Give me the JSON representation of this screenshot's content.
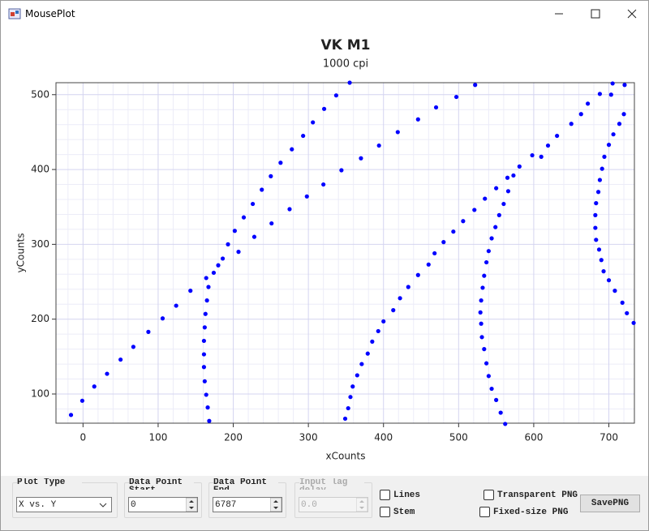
{
  "window": {
    "title": "MousePlot"
  },
  "chart_data": {
    "type": "scatter",
    "title": "VK M1",
    "subtitle": "1000 cpi",
    "x_label": "xCounts",
    "y_label": "yCounts",
    "color": "#0000ff",
    "x": [
      -16,
      -1,
      15,
      32,
      50,
      67,
      87,
      106,
      124,
      143,
      164,
      168,
      166,
      164,
      162,
      161,
      161,
      161,
      162,
      163,
      165,
      167,
      174,
      180,
      186,
      193,
      202,
      214,
      226,
      238,
      250,
      263,
      278,
      293,
      306,
      321,
      337,
      355,
      207,
      228,
      251,
      275,
      298,
      320,
      344,
      370,
      394,
      419,
      446,
      470,
      497,
      522,
      349,
      353,
      356,
      359,
      365,
      371,
      379,
      385,
      393,
      400,
      413,
      422,
      433,
      446,
      460,
      468,
      480,
      493,
      506,
      521,
      535,
      550,
      565,
      581,
      598,
      610,
      619,
      631,
      650,
      663,
      672,
      688,
      705,
      562,
      556,
      550,
      544,
      540,
      537,
      534,
      531,
      530,
      529,
      530,
      532,
      534,
      537,
      540,
      544,
      549,
      554,
      560,
      566,
      573,
      733,
      724,
      718,
      708,
      700,
      693,
      690,
      687,
      683,
      682,
      682,
      683,
      686,
      688,
      691,
      694,
      700,
      706,
      714,
      720,
      703,
      721
    ],
    "y": [
      72,
      91,
      110,
      127,
      146,
      163,
      183,
      201,
      218,
      238,
      255,
      64,
      82,
      99,
      117,
      136,
      153,
      171,
      189,
      207,
      225,
      243,
      262,
      272,
      281,
      300,
      318,
      336,
      354,
      373,
      391,
      409,
      427,
      445,
      463,
      481,
      499,
      516,
      290,
      310,
      328,
      347,
      364,
      380,
      399,
      415,
      432,
      450,
      467,
      483,
      497,
      513,
      67,
      81,
      96,
      110,
      125,
      140,
      154,
      170,
      184,
      197,
      212,
      228,
      243,
      259,
      273,
      288,
      303,
      317,
      331,
      346,
      361,
      375,
      389,
      404,
      419,
      417,
      432,
      445,
      461,
      474,
      488,
      501,
      515,
      60,
      75,
      92,
      107,
      124,
      141,
      160,
      176,
      194,
      209,
      225,
      242,
      258,
      276,
      291,
      308,
      323,
      339,
      354,
      371,
      392,
      195,
      208,
      222,
      238,
      252,
      264,
      279,
      293,
      306,
      322,
      339,
      355,
      370,
      386,
      401,
      417,
      433,
      447,
      461,
      474,
      500,
      513
    ],
    "xlim": [
      -36,
      734
    ],
    "ylim": [
      61,
      516
    ],
    "xticks": [
      0,
      100,
      200,
      300,
      400,
      500,
      600,
      700
    ],
    "yticks": [
      100,
      200,
      300,
      400,
      500
    ],
    "x_minor_ticks": [
      -20,
      20,
      40,
      60,
      80,
      120,
      140,
      160,
      180,
      220,
      240,
      260,
      280,
      320,
      340,
      360,
      380,
      420,
      440,
      460,
      480,
      520,
      540,
      560,
      580,
      620,
      640,
      660,
      680,
      720
    ],
    "y_minor_ticks": [
      80,
      120,
      140,
      160,
      180,
      220,
      240,
      260,
      280,
      320,
      340,
      360,
      380,
      420,
      440,
      460,
      480
    ],
    "grid": true
  },
  "controls": {
    "plot_type": {
      "label": "Plot Type",
      "value": "X vs. Y"
    },
    "start": {
      "label": "Data Point Start",
      "value": "0"
    },
    "end": {
      "label": "Data Point End",
      "value": "6787"
    },
    "lag": {
      "label": "Input lag delay",
      "value": "0.0"
    },
    "lines": {
      "label": "Lines"
    },
    "stem": {
      "label": "Stem"
    },
    "transparent": {
      "label": "Transparent PNG"
    },
    "fixed": {
      "label": "Fixed-size PNG"
    },
    "save": {
      "label": "SavePNG"
    }
  }
}
